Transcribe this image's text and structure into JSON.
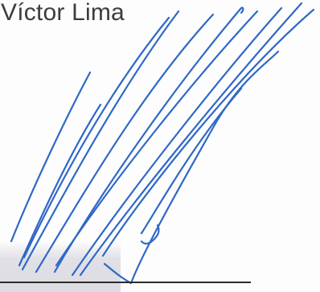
{
  "signer": {
    "name": "Víctor Lima"
  },
  "signature": {
    "ink_color": "#2f68c8",
    "line_color": "#2b2b2b"
  }
}
